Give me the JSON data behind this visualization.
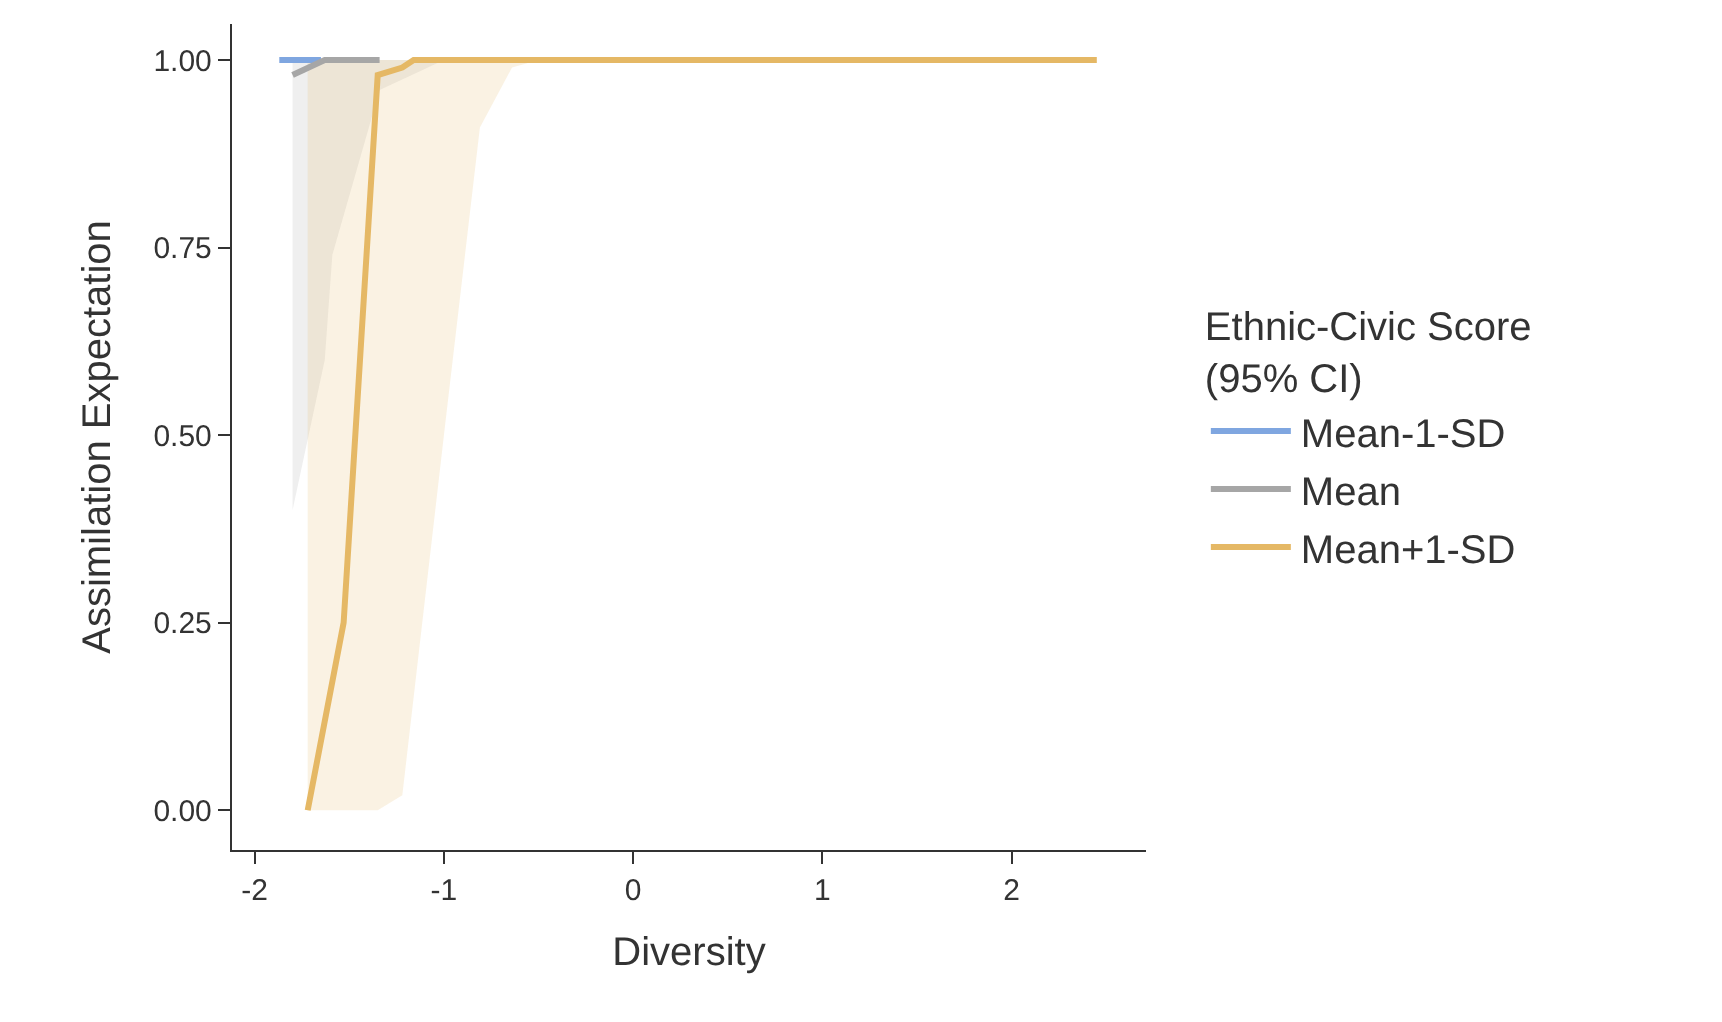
{
  "chart_data": {
    "type": "line",
    "xlabel": "Diversity",
    "ylabel": "Assimilation Expectation",
    "legend_title": "Ethnic-Civic Score\n(95% CI)",
    "legend": "right",
    "xlim": [
      -2.12,
      2.71
    ],
    "xticks": [
      -2,
      -1,
      0,
      1,
      2
    ],
    "ylim": [
      -0.053,
      1.048
    ],
    "yticks": [
      {
        "value": 0,
        "label": "0.00"
      },
      {
        "value": 0.25,
        "label": "0.25"
      },
      {
        "value": 0.5,
        "label": "0.50"
      },
      {
        "value": 0.75,
        "label": "0.75"
      },
      {
        "value": 1,
        "label": "1.00"
      }
    ],
    "series": [
      {
        "name": "Mean-1-SD",
        "color": "#7fa6e0",
        "x": [
          -1.87,
          -1.65
        ],
        "values": [
          1,
          1
        ]
      },
      {
        "name": "Mean",
        "color": "#a6a6a6",
        "x": [
          -1.8,
          -1.63,
          -1.59,
          -1.34,
          -1.0,
          2.45
        ],
        "values": [
          0.98,
          1,
          1,
          1,
          null,
          null
        ],
        "lower": [
          0.4,
          0.6,
          0.74,
          0.96,
          1,
          1
        ],
        "upper": [
          1,
          1,
          1,
          1,
          1,
          1
        ]
      },
      {
        "name": "Mean+1-SD",
        "color": "#e5b865",
        "x": [
          -1.72,
          -1.53,
          -1.35,
          -1.22,
          -1.16,
          -1.0,
          -0.81,
          -0.64,
          -0.5,
          2.45
        ],
        "values": [
          0,
          0.25,
          0.98,
          0.99,
          1,
          1,
          1,
          1,
          1,
          1
        ],
        "lower": [
          0,
          0,
          0,
          0.02,
          0.15,
          0.5,
          0.91,
          0.99,
          1,
          1
        ],
        "upper": [
          1,
          1,
          1,
          1,
          1,
          1,
          1,
          1,
          1,
          1
        ]
      }
    ]
  }
}
